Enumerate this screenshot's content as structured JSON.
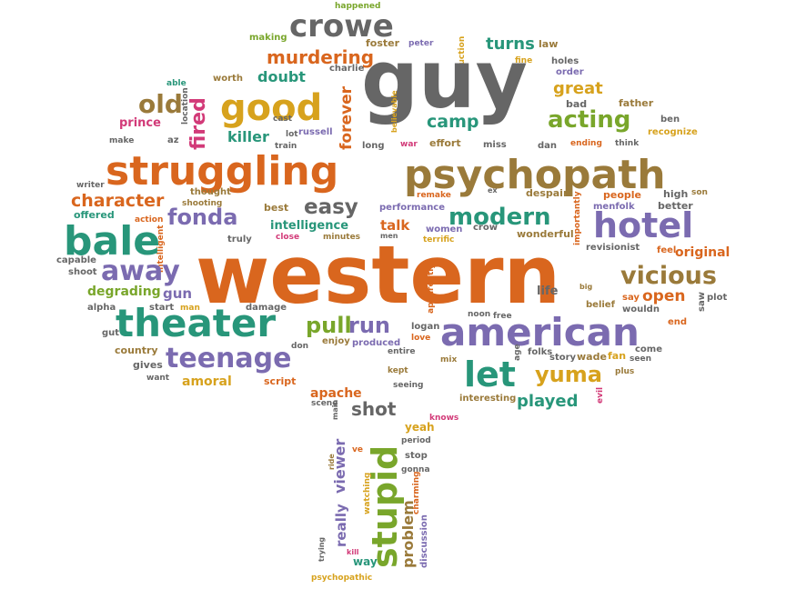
{
  "colors": {
    "orange": "#d9661e",
    "gray": "#666666",
    "teal": "#28967a",
    "purple": "#7b6bb0",
    "gold": "#d7a21d",
    "brown": "#9a7a3a",
    "green": "#79a62b",
    "pink": "#d23a78"
  },
  "words": {
    "happened": "happened",
    "crowe": "crowe",
    "making": "making",
    "foster": "foster",
    "peter": "peter",
    "production": "production",
    "turns": "turns",
    "law": "law",
    "worth": "worth",
    "murdering": "murdering",
    "charlie": "charlie",
    "guy": "guy",
    "fine": "fine",
    "holes": "holes",
    "order": "order",
    "able": "able",
    "doubt": "doubt",
    "forever": "forever",
    "believable": "believable",
    "old": "old",
    "good": "good",
    "great": "great",
    "bad": "bad",
    "father": "father",
    "location": "location",
    "prince": "prince",
    "fired": "fired",
    "cast": "cast",
    "camp": "camp",
    "acting": "acting",
    "ben": "ben",
    "make": "make",
    "az": "az",
    "killer": "killer",
    "lot": "lot",
    "russell": "russell",
    "recognize": "recognize",
    "train": "train",
    "long": "long",
    "war": "war",
    "effort": "effort",
    "miss": "miss",
    "dan": "dan",
    "ending": "ending",
    "think": "think",
    "struggling": "struggling",
    "psychopath": "psychopath",
    "writer": "writer",
    "thought": "thought",
    "remake": "remake",
    "ex": "ex",
    "despair": "despair",
    "people": "people",
    "high": "high",
    "son": "son",
    "character": "character",
    "shooting": "shooting",
    "easy": "easy",
    "best": "best",
    "performance": "performance",
    "menfolk": "menfolk",
    "better": "better",
    "offered": "offered",
    "fonda": "fonda",
    "modern": "modern",
    "hotel": "hotel",
    "action": "action",
    "intelligent": "intelligent",
    "intelligence": "intelligence",
    "talk": "talk",
    "women": "women",
    "crow": "crow",
    "bale": "bale",
    "men": "men",
    "truly": "truly",
    "close": "close",
    "minutes": "minutes",
    "terrific": "terrific",
    "wonderful": "wonderful",
    "importantly": "importantly",
    "revisionist": "revisionist",
    "feel": "feel",
    "original": "original",
    "capable": "capable",
    "western": "western",
    "away": "away",
    "shoot": "shoot",
    "start": "start",
    "vicious": "vicious",
    "apparently": "apparently",
    "big": "big",
    "degrading": "degrading",
    "gun": "gun",
    "life": "life",
    "belief": "belief",
    "say": "say",
    "wouldn": "wouldn",
    "open": "open",
    "plot": "plot",
    "alpha": "alpha",
    "man": "man",
    "damage": "damage",
    "noon": "noon",
    "free": "free",
    "saw": "saw",
    "theater": "theater",
    "pull": "pull",
    "run": "run",
    "logan": "logan",
    "american": "american",
    "end": "end",
    "gut": "gut",
    "don": "don",
    "enjoy": "enjoy",
    "produced": "produced",
    "love": "love",
    "age": "age",
    "folks": "folks",
    "story": "story",
    "wade": "wade",
    "fan": "fan",
    "come": "come",
    "country": "country",
    "teenage": "teenage",
    "entire": "entire",
    "mix": "mix",
    "let": "let",
    "seen": "seen",
    "gives": "gives",
    "kept": "kept",
    "yuma": "yuma",
    "plus": "plus",
    "want": "want",
    "script": "script",
    "amoral": "amoral",
    "seeing": "seeing",
    "apache": "apache",
    "evil": "evil",
    "scene": "scene",
    "interesting": "interesting",
    "played": "played",
    "shot": "shot",
    "main": "main",
    "knows": "knows",
    "yeah": "yeah",
    "period": "period",
    "stupid": "stupid",
    "viewer": "viewer",
    "ve": "ve",
    "stop": "stop",
    "gonna": "gonna",
    "ride": "ride",
    "watching": "watching",
    "charming": "charming",
    "really": "really",
    "problem": "problem",
    "discussion": "discussion",
    "trying": "trying",
    "kill": "kill",
    "way": "way",
    "psychopathic": "psychopathic"
  }
}
